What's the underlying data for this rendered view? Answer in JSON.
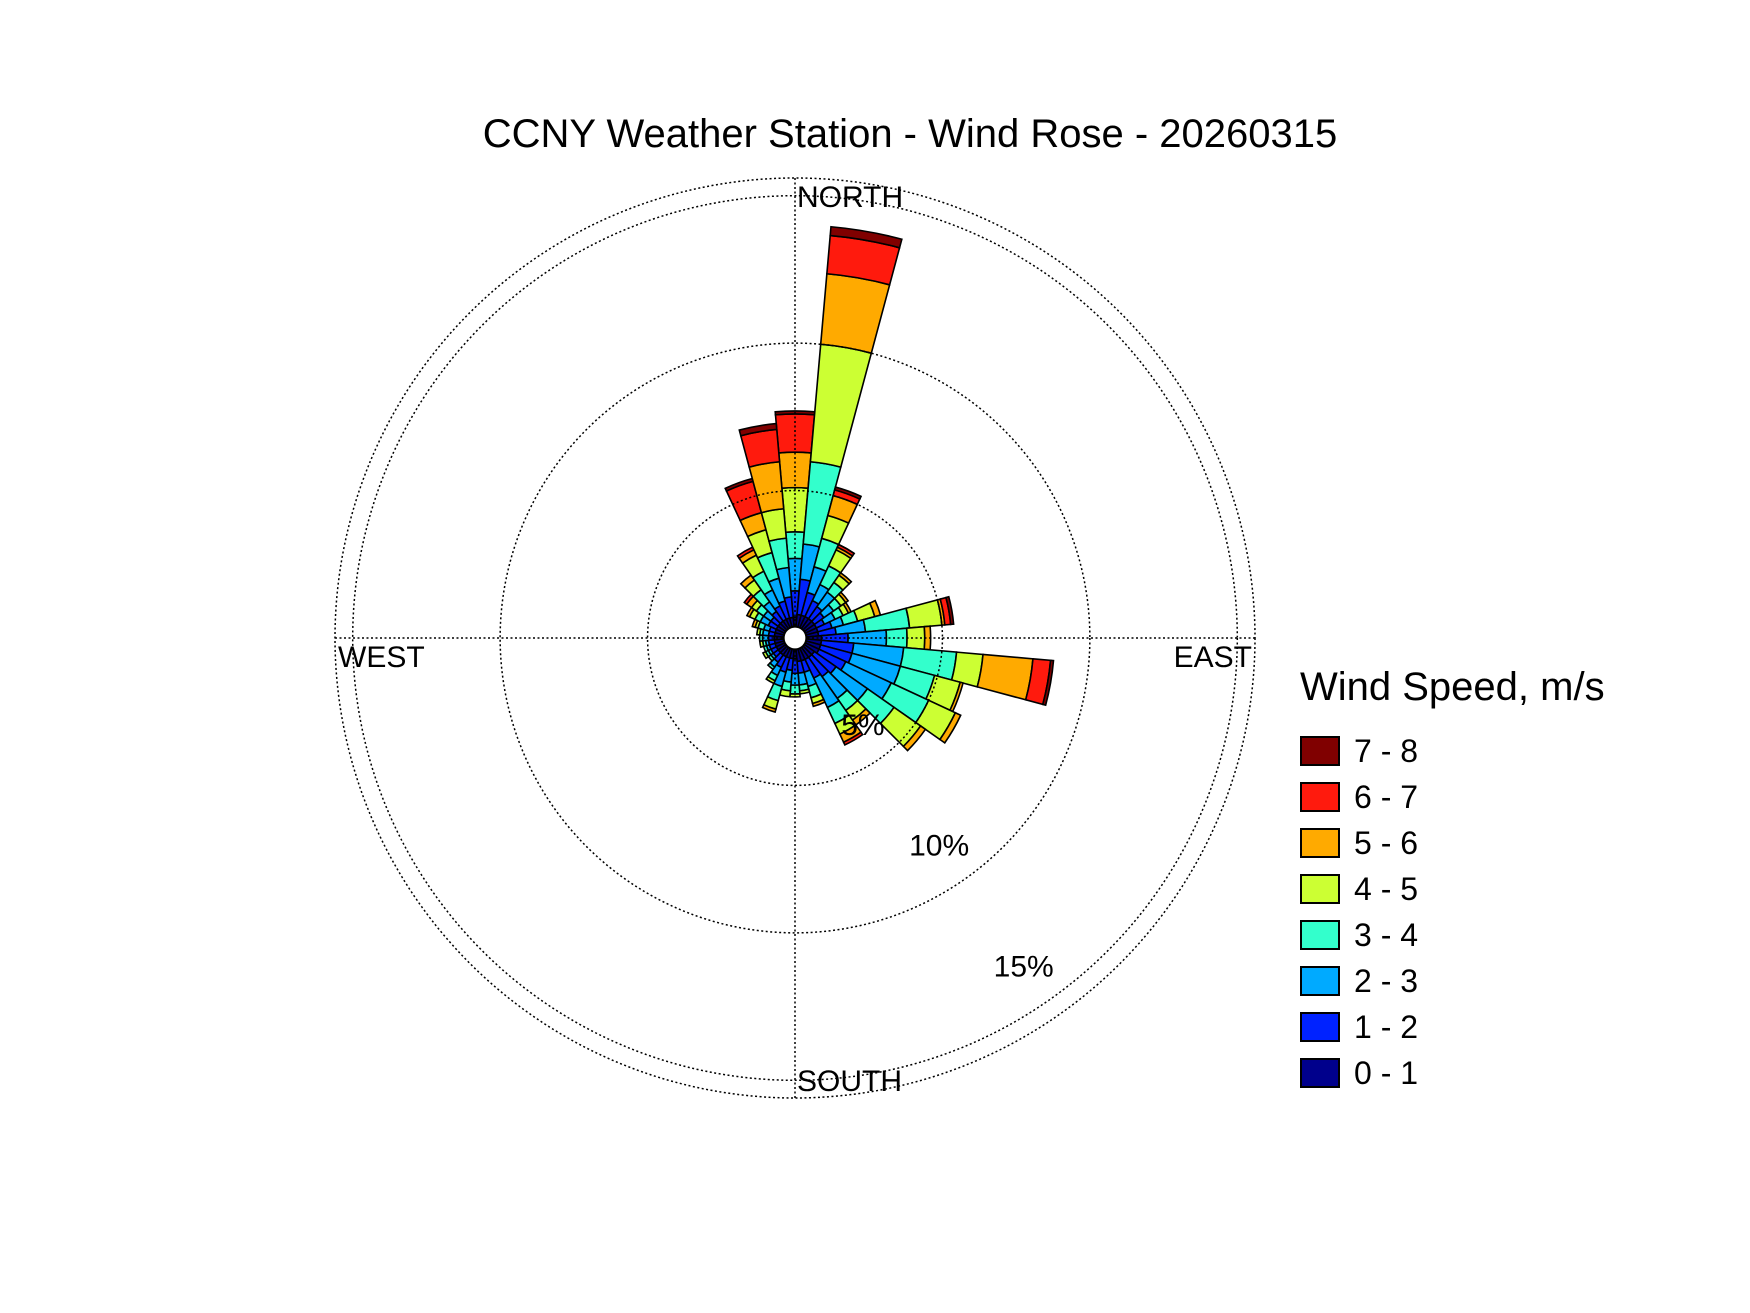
{
  "chart_data": {
    "type": "wind-rose",
    "title": "CCNY Weather Station - Wind Rose - 20260315",
    "direction_labels": {
      "north": "NORTH",
      "east": "EAST",
      "south": "SOUTH",
      "west": "WEST"
    },
    "ring_labels": [
      "5%",
      "10%",
      "15%"
    ],
    "ring_values": [
      5,
      10,
      15
    ],
    "rmax": 15.6,
    "legend_title": "Wind Speed, m/s",
    "speed_bins": [
      {
        "label": "0 - 1",
        "color": "#00008c"
      },
      {
        "label": "1 - 2",
        "color": "#0022ff"
      },
      {
        "label": "2 - 3",
        "color": "#00aaff"
      },
      {
        "label": "3 - 4",
        "color": "#33ffcc"
      },
      {
        "label": "4 - 5",
        "color": "#ccff33"
      },
      {
        "label": "5 - 6",
        "color": "#ffaa00"
      },
      {
        "label": "6 - 7",
        "color": "#ff1a0d"
      },
      {
        "label": "7 - 8",
        "color": "#800000"
      }
    ],
    "sector_width_deg": 10,
    "sectors": [
      {
        "dir": 0,
        "cum": [
          0.7,
          1.6,
          2.7,
          3.6,
          5.1,
          6.3,
          7.6,
          7.7
        ]
      },
      {
        "dir": 10,
        "cum": [
          0.8,
          2.0,
          3.2,
          6.0,
          10.0,
          12.4,
          13.7,
          14.0
        ]
      },
      {
        "dir": 20,
        "cum": [
          0.8,
          1.6,
          2.5,
          3.5,
          4.3,
          5.0,
          5.2,
          5.3
        ]
      },
      {
        "dir": 30,
        "cum": [
          0.8,
          1.4,
          2.0,
          2.7,
          3.3,
          3.4,
          3.5,
          3.5
        ]
      },
      {
        "dir": 40,
        "cum": [
          0.8,
          1.3,
          1.9,
          2.3,
          2.6,
          2.7
        ]
      },
      {
        "dir": 50,
        "cum": [
          0.8,
          1.2,
          1.6,
          1.9,
          2.1,
          2.2
        ]
      },
      {
        "dir": 60,
        "cum": [
          0.8,
          1.1,
          1.5,
          1.8,
          2.0,
          2.1
        ]
      },
      {
        "dir": 70,
        "cum": [
          0.8,
          1.3,
          1.7,
          2.2,
          2.8,
          3.0
        ]
      },
      {
        "dir": 80,
        "cum": [
          0.8,
          1.4,
          2.4,
          3.9,
          5.0,
          5.1,
          5.3,
          5.4
        ]
      },
      {
        "dir": 90,
        "cum": [
          0.9,
          1.8,
          3.1,
          3.8,
          4.4,
          4.6
        ]
      },
      {
        "dir": 100,
        "cum": [
          0.9,
          2.0,
          3.7,
          5.5,
          6.4,
          8.1,
          8.7,
          8.8
        ]
      },
      {
        "dir": 110,
        "cum": [
          0.9,
          2.0,
          3.7,
          4.9,
          5.8,
          5.9
        ]
      },
      {
        "dir": 120,
        "cum": [
          0.9,
          1.9,
          3.6,
          5.0,
          6.0,
          6.2
        ]
      },
      {
        "dir": 130,
        "cum": [
          0.8,
          1.7,
          3.0,
          4.1,
          5.2,
          5.4
        ]
      },
      {
        "dir": 140,
        "cum": [
          0.8,
          1.6,
          2.5,
          3.0,
          3.4,
          3.6
        ]
      },
      {
        "dir": 150,
        "cum": [
          0.8,
          1.5,
          2.6,
          3.2,
          3.6,
          3.9,
          4.0
        ]
      },
      {
        "dir": 160,
        "cum": [
          0.8,
          1.2,
          1.7,
          2.1,
          2.3,
          2.4
        ]
      },
      {
        "dir": 170,
        "cum": [
          0.8,
          1.2,
          1.6,
          1.8,
          1.9
        ]
      },
      {
        "dir": 180,
        "cum": [
          0.7,
          1.2,
          1.6,
          1.9,
          2.0
        ]
      },
      {
        "dir": 190,
        "cum": [
          0.7,
          1.1,
          1.5,
          1.8,
          2.0
        ]
      },
      {
        "dir": 200,
        "cum": [
          0.7,
          1.2,
          1.7,
          2.2,
          2.5,
          2.6
        ]
      },
      {
        "dir": 210,
        "cum": [
          0.7,
          1.1,
          1.4,
          1.6,
          1.7
        ]
      },
      {
        "dir": 220,
        "cum": [
          0.7,
          1.0,
          1.2,
          1.3
        ]
      },
      {
        "dir": 230,
        "cum": [
          0.7,
          0.9,
          1.0,
          1.1
        ]
      },
      {
        "dir": 240,
        "cum": [
          0.7,
          0.9,
          1.0,
          1.1,
          1.2
        ]
      },
      {
        "dir": 250,
        "cum": [
          0.7,
          0.9,
          1.0,
          1.1
        ]
      },
      {
        "dir": 260,
        "cum": [
          0.7,
          0.9,
          1.0,
          1.1,
          1.2
        ]
      },
      {
        "dir": 270,
        "cum": [
          0.7,
          0.9,
          1.1,
          1.2
        ]
      },
      {
        "dir": 280,
        "cum": [
          0.7,
          0.9,
          1.1,
          1.2,
          1.3
        ]
      },
      {
        "dir": 290,
        "cum": [
          0.7,
          0.9,
          1.1,
          1.3,
          1.4,
          1.5
        ]
      },
      {
        "dir": 300,
        "cum": [
          0.7,
          1.0,
          1.3,
          1.5,
          1.7,
          1.8
        ]
      },
      {
        "dir": 310,
        "cum": [
          0.7,
          1.0,
          1.3,
          1.6,
          1.8,
          2.0,
          2.1
        ]
      },
      {
        "dir": 320,
        "cum": [
          0.7,
          1.1,
          1.5,
          2.0,
          2.4,
          2.6
        ]
      },
      {
        "dir": 330,
        "cum": [
          0.7,
          1.2,
          1.8,
          2.5,
          3.1,
          3.3,
          3.4
        ]
      },
      {
        "dir": 340,
        "cum": [
          0.7,
          1.3,
          2.1,
          3.0,
          3.8,
          4.4,
          5.5,
          5.6
        ]
      },
      {
        "dir": 350,
        "cum": [
          0.7,
          1.4,
          2.4,
          3.4,
          4.4,
          6.0,
          7.1,
          7.3
        ]
      }
    ]
  }
}
